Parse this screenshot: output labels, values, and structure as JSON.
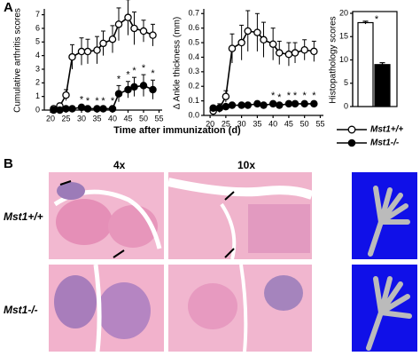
{
  "panel_labels": [
    "A",
    "B"
  ],
  "chart_data": [
    {
      "type": "line",
      "xlabel": "Time after immunization (d)",
      "ylabel": "Cumulative arthritis scores",
      "xlim": [
        18,
        56
      ],
      "xticks": [
        20,
        25,
        30,
        35,
        40,
        45,
        50,
        55
      ],
      "ylim": [
        0,
        7.3
      ],
      "yticks": [
        0,
        1,
        2,
        3,
        4,
        5,
        6,
        7
      ],
      "x": [
        21,
        23,
        25,
        27,
        30,
        32,
        35,
        37,
        40,
        42,
        45,
        47,
        50,
        53
      ],
      "significance_label": "*",
      "significant": [
        false,
        false,
        false,
        false,
        true,
        true,
        true,
        true,
        true,
        true,
        true,
        true,
        true,
        true
      ],
      "series": [
        {
          "color": "#ffffff",
          "values": [
            0.1,
            0.3,
            1.1,
            3.9,
            4.3,
            4.3,
            4.4,
            4.9,
            5.2,
            6.3,
            6.8,
            6.0,
            5.8,
            5.5
          ],
          "errors": [
            0.1,
            0.2,
            0.4,
            0.9,
            1.0,
            0.9,
            1.0,
            0.9,
            1.0,
            1.2,
            1.3,
            1.2,
            0.8,
            0.8
          ]
        },
        {
          "color": "#000000",
          "values": [
            0.0,
            0.0,
            0.1,
            0.1,
            0.2,
            0.1,
            0.1,
            0.1,
            0.1,
            1.2,
            1.5,
            1.7,
            1.8,
            1.5
          ],
          "errors": [
            0.05,
            0.05,
            0.1,
            0.1,
            0.1,
            0.1,
            0.1,
            0.1,
            0.1,
            0.6,
            0.6,
            0.7,
            0.8,
            0.7
          ]
        }
      ]
    },
    {
      "type": "line",
      "ylabel": "Δ Ankle thickness (mm)",
      "xlim": [
        18,
        56
      ],
      "xticks": [
        20,
        25,
        30,
        35,
        40,
        45,
        50,
        55
      ],
      "ylim": [
        0,
        0.72
      ],
      "yticks": [
        {
          "value": 0,
          "label": "0.0"
        },
        0.1,
        0.2,
        0.3,
        0.4,
        0.5,
        0.6,
        0.7
      ],
      "x": [
        21,
        23,
        25,
        27,
        30,
        32,
        35,
        37,
        40,
        42,
        45,
        47,
        50,
        53
      ],
      "significance_label": "*",
      "significant": [
        false,
        false,
        false,
        false,
        false,
        false,
        false,
        false,
        true,
        true,
        true,
        true,
        true,
        true
      ],
      "series": [
        {
          "color": "#ffffff",
          "values": [
            0.03,
            0.05,
            0.13,
            0.46,
            0.5,
            0.58,
            0.57,
            0.52,
            0.49,
            0.43,
            0.42,
            0.43,
            0.45,
            0.44
          ],
          "errors": [
            0.02,
            0.03,
            0.04,
            0.1,
            0.12,
            0.14,
            0.13,
            0.12,
            0.11,
            0.08,
            0.08,
            0.07,
            0.07,
            0.07
          ]
        },
        {
          "color": "#000000",
          "values": [
            0.05,
            0.05,
            0.06,
            0.07,
            0.07,
            0.07,
            0.08,
            0.07,
            0.08,
            0.07,
            0.08,
            0.08,
            0.08,
            0.08
          ],
          "errors": [
            0.01,
            0.01,
            0.01,
            0.01,
            0.01,
            0.01,
            0.01,
            0.01,
            0.01,
            0.01,
            0.01,
            0.01,
            0.01,
            0.01
          ]
        }
      ]
    },
    {
      "type": "bar",
      "ylabel": "Histopathology scores",
      "ylim": [
        0,
        20
      ],
      "yticks": [
        0,
        5,
        10,
        15,
        20
      ],
      "significance_label": "*",
      "series": [
        {
          "name": "Mst1+/+",
          "color": "#ffffff",
          "values": [
            18
          ],
          "errors": [
            0.3
          ]
        },
        {
          "name": "Mst1-/-",
          "color": "#000000",
          "values": [
            9
          ],
          "errors": [
            0.4
          ]
        }
      ]
    }
  ],
  "panel_b": {
    "columns": [
      "4x",
      "10x"
    ],
    "rows": [
      "Mst1+/+",
      "Mst1-/-"
    ]
  }
}
